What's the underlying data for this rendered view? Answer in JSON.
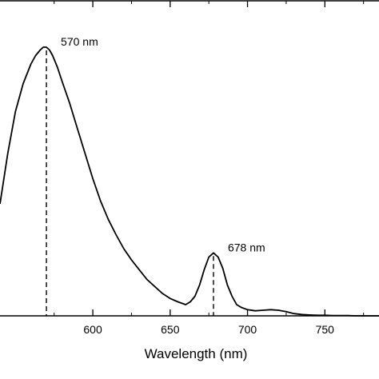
{
  "chart_data": {
    "type": "line",
    "xlabel": "Wavelength (nm)",
    "ylabel": "",
    "xlim": [
      540,
      785
    ],
    "ylim": [
      0,
      1.0
    ],
    "x_ticks": [
      600,
      650,
      700,
      750
    ],
    "grid": false,
    "annotations": [
      {
        "text": "570 nm",
        "x": 570
      },
      {
        "text": "678 nm",
        "x": 678
      }
    ],
    "series": [
      {
        "x": [
          540,
          545,
          550,
          555,
          560,
          563,
          566,
          568,
          570,
          572,
          574,
          577,
          580,
          585,
          590,
          595,
          600,
          605,
          610,
          615,
          620,
          625,
          630,
          635,
          640,
          645,
          650,
          655,
          660,
          663,
          666,
          669,
          672,
          675,
          678,
          681,
          684,
          687,
          690,
          693,
          696,
          700,
          705,
          710,
          715,
          720,
          725,
          730,
          735,
          740,
          745,
          750,
          755,
          760,
          765,
          770,
          775,
          780,
          785
        ],
        "y": [
          0.4,
          0.58,
          0.73,
          0.83,
          0.9,
          0.93,
          0.95,
          0.96,
          0.96,
          0.95,
          0.93,
          0.89,
          0.84,
          0.76,
          0.67,
          0.58,
          0.49,
          0.41,
          0.345,
          0.29,
          0.24,
          0.2,
          0.165,
          0.13,
          0.105,
          0.08,
          0.062,
          0.05,
          0.04,
          0.05,
          0.07,
          0.11,
          0.165,
          0.21,
          0.225,
          0.21,
          0.17,
          0.11,
          0.07,
          0.04,
          0.03,
          0.022,
          0.018,
          0.02,
          0.022,
          0.02,
          0.015,
          0.008,
          0.005,
          0.003,
          0.002,
          0.002,
          0.001,
          0.001,
          0.001,
          0.0,
          0.0,
          0.0,
          0.0
        ]
      }
    ]
  }
}
